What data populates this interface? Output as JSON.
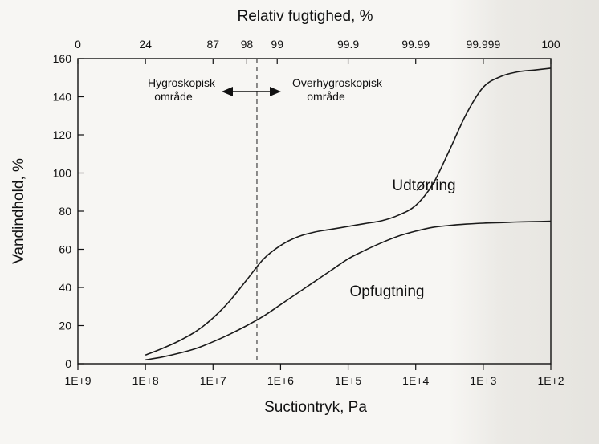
{
  "chart_data": {
    "type": "line",
    "title": "",
    "xlabel": "Suctiontryk, Pa",
    "ylabel": "Vandindhold, %",
    "top_axis_label": "Relativ fugtighed, %",
    "ylim": [
      0,
      160
    ],
    "y_ticks": [
      0,
      20,
      40,
      60,
      80,
      100,
      120,
      140,
      160
    ],
    "x_scale": "log-reversed",
    "x_ticks": [
      "1E+9",
      "1E+8",
      "1E+7",
      "1E+6",
      "1E+5",
      "1E+4",
      "1E+3",
      "1E+2"
    ],
    "x_tick_exponents": [
      9,
      8,
      7,
      6,
      5,
      4,
      3,
      2
    ],
    "top_ticks": [
      {
        "label": "0",
        "exp": 9
      },
      {
        "label": "24",
        "exp": 8
      },
      {
        "label": "87",
        "exp": 7
      },
      {
        "label": "98",
        "exp": 6.5
      },
      {
        "label": "99",
        "exp": 6.05
      },
      {
        "label": "99.9",
        "exp": 5
      },
      {
        "label": "99.99",
        "exp": 4
      },
      {
        "label": "99.999",
        "exp": 3
      },
      {
        "label": "100",
        "exp": 2
      }
    ],
    "divider_exp": 6.35,
    "annotations": {
      "hygro_line1": "Hygroskopisk",
      "hygro_line2": "område",
      "overhygro_line1": "Overhygroskopisk",
      "overhygro_line2": "område"
    },
    "series": [
      {
        "name": "Udtørring",
        "x_exp": [
          8,
          7.75,
          7.5,
          7.25,
          7,
          6.75,
          6.5,
          6.25,
          6,
          5.75,
          5.5,
          5.25,
          5,
          4.75,
          4.5,
          4.25,
          4,
          3.75,
          3.5,
          3.25,
          3,
          2.75,
          2.5,
          2.25,
          2
        ],
        "values": [
          4.5,
          8,
          12,
          17,
          24,
          33,
          44,
          55,
          62,
          66.5,
          69,
          70.5,
          72,
          73.5,
          75,
          78,
          83,
          94,
          112,
          131,
          145,
          150.5,
          153,
          154,
          155
        ]
      },
      {
        "name": "Opfugtning",
        "x_exp": [
          8,
          7.75,
          7.5,
          7.25,
          7,
          6.75,
          6.5,
          6.25,
          6,
          5.75,
          5.5,
          5.25,
          5,
          4.75,
          4.5,
          4.25,
          4,
          3.75,
          3.5,
          3.25,
          3,
          2.75,
          2.5,
          2.25,
          2
        ],
        "values": [
          2,
          3.5,
          5.5,
          8,
          11.5,
          15.5,
          20,
          25,
          31,
          37,
          43,
          49,
          55,
          59.5,
          63.5,
          67,
          69.5,
          71.5,
          72.5,
          73.2,
          73.7,
          74,
          74.3,
          74.5,
          74.7
        ]
      }
    ],
    "grid": false,
    "legend": "none"
  }
}
